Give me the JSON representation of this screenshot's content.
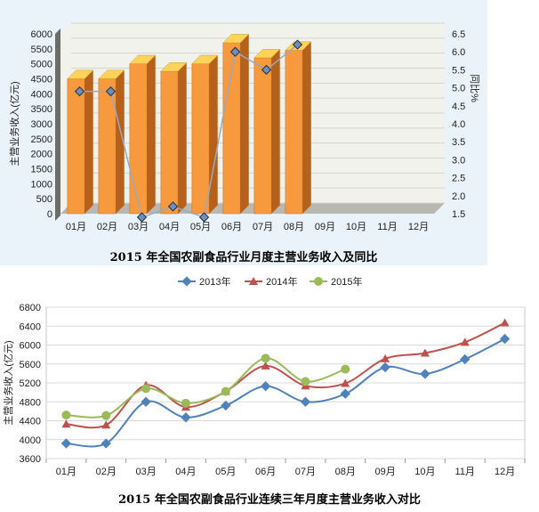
{
  "chart_data": [
    {
      "type": "bar",
      "title": "2015 年全国农副食品行业月度主营业务收入及同比",
      "categories": [
        "01月",
        "02月",
        "03月",
        "04月",
        "05月",
        "06月",
        "07月",
        "08月",
        "09月",
        "10月",
        "11月",
        "12月"
      ],
      "series": [
        {
          "values": [
            4500,
            4500,
            5000,
            4750,
            5000,
            5700,
            5200,
            5450,
            null,
            null,
            null,
            null
          ],
          "color": "#f59a3c",
          "axis": "left"
        },
        {
          "values": [
            4.9,
            4.9,
            1.4,
            1.7,
            1.4,
            6.0,
            5.5,
            6.2,
            null,
            null,
            null,
            null
          ],
          "color": "#5a7fae",
          "axis": "right"
        }
      ],
      "ylabel": "主营业务收入(亿元)",
      "y2label": "同比%",
      "ylim": [
        0,
        6000
      ],
      "yticks": [
        0,
        500,
        1000,
        1500,
        2000,
        2500,
        3000,
        3500,
        4000,
        4500,
        5000,
        5500,
        6000
      ],
      "y2lim": [
        1.5,
        6.5
      ],
      "y2ticks": [
        "1.5",
        "2.0",
        "2.5",
        "3.0",
        "3.5",
        "4.0",
        "4.5",
        "5.0",
        "5.5",
        "6.0",
        "6.5"
      ],
      "grid": true
    },
    {
      "type": "line",
      "title": "2015 年全国农副食品行业连续三年月度主营业务收入对比",
      "categories": [
        "01月",
        "02月",
        "03月",
        "04月",
        "05月",
        "06月",
        "07月",
        "08月",
        "09月",
        "10月",
        "11月",
        "12月"
      ],
      "series": [
        {
          "name": "2013年",
          "color": "#4f81bd",
          "values": [
            3920,
            3920,
            4800,
            4470,
            4720,
            5130,
            4800,
            4970,
            5530,
            5390,
            5700,
            6130
          ]
        },
        {
          "name": "2014年",
          "color": "#c0504d",
          "values": [
            4330,
            4310,
            5150,
            4690,
            5020,
            5560,
            5140,
            5190,
            5710,
            5830,
            6060,
            6470
          ]
        },
        {
          "name": "2015年",
          "color": "#9bbb59",
          "values": [
            4520,
            4510,
            5080,
            4770,
            5020,
            5720,
            5230,
            5490,
            null,
            null,
            null,
            null
          ]
        }
      ],
      "ylabel": "主营业务收入(亿元)",
      "ylim": [
        3600,
        6800
      ],
      "yticks": [
        3600,
        4000,
        4400,
        4800,
        5200,
        5600,
        6000,
        6400,
        6800
      ],
      "legend": "top",
      "grid": true
    }
  ]
}
